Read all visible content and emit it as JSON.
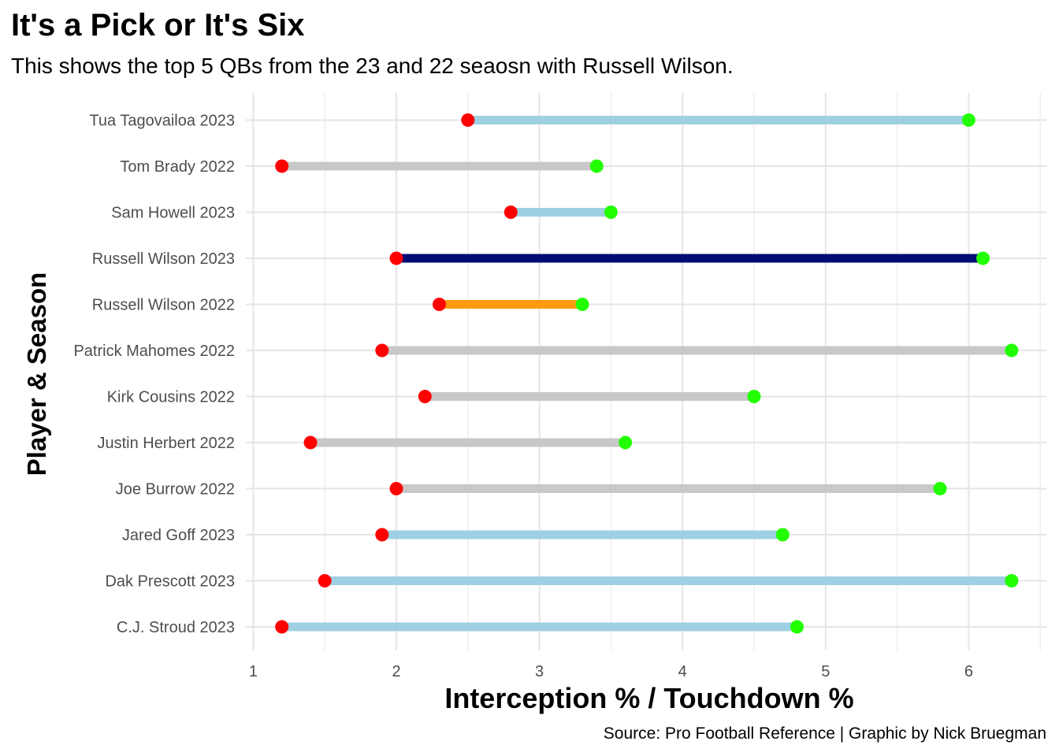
{
  "chart_data": {
    "type": "dumbbell",
    "title": "It's a Pick or It's Six",
    "subtitle": "This shows the top 5 QBs from the 23 and 22 seaosn with Russell Wilson.",
    "xlabel": "Interception % / Touchdown %",
    "ylabel": "Player & Season",
    "caption": "Source: Pro Football Reference | Graphic by Nick Bruegman",
    "xlim": [
      1,
      6.5
    ],
    "x_ticks": [
      "1",
      "2",
      "3",
      "4",
      "5",
      "6"
    ],
    "grid": true,
    "point_colors": {
      "interception": "#ff0000",
      "touchdown": "#22ff00"
    },
    "rows": [
      {
        "label": "Tua Tagovailoa 2023",
        "int_pct": 2.5,
        "td_pct": 6.0,
        "bar_color": "#9ecfe2"
      },
      {
        "label": "Tom Brady 2022",
        "int_pct": 1.2,
        "td_pct": 3.4,
        "bar_color": "#c8c8c8"
      },
      {
        "label": "Sam Howell 2023",
        "int_pct": 2.8,
        "td_pct": 3.5,
        "bar_color": "#9ecfe2"
      },
      {
        "label": "Russell Wilson 2023",
        "int_pct": 2.0,
        "td_pct": 6.1,
        "bar_color": "#000b75"
      },
      {
        "label": "Russell Wilson 2022",
        "int_pct": 2.3,
        "td_pct": 3.3,
        "bar_color": "#ff9a10"
      },
      {
        "label": "Patrick Mahomes 2022",
        "int_pct": 1.9,
        "td_pct": 6.3,
        "bar_color": "#c8c8c8"
      },
      {
        "label": "Kirk Cousins 2022",
        "int_pct": 2.2,
        "td_pct": 4.5,
        "bar_color": "#c8c8c8"
      },
      {
        "label": "Justin Herbert 2022",
        "int_pct": 1.4,
        "td_pct": 3.6,
        "bar_color": "#c8c8c8"
      },
      {
        "label": "Joe Burrow 2022",
        "int_pct": 2.0,
        "td_pct": 5.8,
        "bar_color": "#c8c8c8"
      },
      {
        "label": "Jared Goff 2023",
        "int_pct": 1.9,
        "td_pct": 4.7,
        "bar_color": "#9ecfe2"
      },
      {
        "label": "Dak Prescott 2023",
        "int_pct": 1.5,
        "td_pct": 6.3,
        "bar_color": "#9ecfe2"
      },
      {
        "label": "C.J. Stroud 2023",
        "int_pct": 1.2,
        "td_pct": 4.8,
        "bar_color": "#9ecfe2"
      }
    ]
  }
}
